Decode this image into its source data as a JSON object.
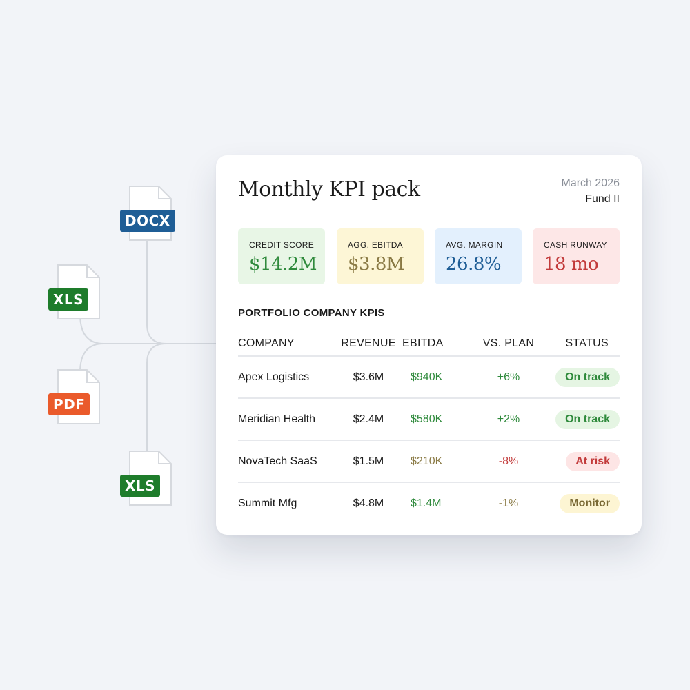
{
  "colors": {
    "connector": "#d4d8de",
    "file_outline": "#d6d9de",
    "green_text": "#2f8a3c",
    "olive_text": "#8a7a45",
    "red_text": "#c23a3a",
    "blue_text": "#1f5e96"
  },
  "files": [
    {
      "type": "DOCX",
      "icon": "docx-file-icon"
    },
    {
      "type": "XLS",
      "icon": "xls-file-icon"
    },
    {
      "type": "PDF",
      "icon": "pdf-file-icon"
    },
    {
      "type": "XLS",
      "icon": "xls-file-icon"
    }
  ],
  "card": {
    "title": "Monthly KPI pack",
    "date": "March 2026",
    "fund": "Fund II"
  },
  "kpis": [
    {
      "label": "CREDIT SCORE",
      "value": "$14.2M",
      "bg": "#e8f6e6",
      "color": "#2f8a3c"
    },
    {
      "label": "AGG. EBITDA",
      "value": "$3.8M",
      "bg": "#fdf6d6",
      "color": "#8a7a45"
    },
    {
      "label": "AVG. MARGIN",
      "value": "26.8%",
      "bg": "#e3f0fd",
      "color": "#1f5e96"
    },
    {
      "label": "CASH RUNWAY",
      "value": "18 mo",
      "bg": "#fde7e7",
      "color": "#c23a3a"
    }
  ],
  "table": {
    "title": "PORTFOLIO COMPANY KPIS",
    "columns": [
      "COMPANY",
      "REVENUE",
      "EBITDA",
      "VS. PLAN",
      "STATUS"
    ],
    "rows": [
      {
        "company": "Apex Logistics",
        "revenue": "$3.6M",
        "ebitda": "$940K",
        "ebitda_color": "#2f8a3c",
        "vs_plan": "+6%",
        "vs_plan_color": "#2f8a3c",
        "status": "On track",
        "status_bg": "#e5f5e3",
        "status_color": "#2f8a3c"
      },
      {
        "company": "Meridian Health",
        "revenue": "$2.4M",
        "ebitda": "$580K",
        "ebitda_color": "#2f8a3c",
        "vs_plan": "+2%",
        "vs_plan_color": "#2f8a3c",
        "status": "On track",
        "status_bg": "#e5f5e3",
        "status_color": "#2f8a3c"
      },
      {
        "company": "NovaTech SaaS",
        "revenue": "$1.5M",
        "ebitda": "$210K",
        "ebitda_color": "#8a7a45",
        "vs_plan": "-8%",
        "vs_plan_color": "#c23a3a",
        "status": "At risk",
        "status_bg": "#fde5e5",
        "status_color": "#c23a3a"
      },
      {
        "company": "Summit Mfg",
        "revenue": "$4.8M",
        "ebitda": "$1.4M",
        "ebitda_color": "#2f8a3c",
        "vs_plan": "-1%",
        "vs_plan_color": "#8a7a45",
        "status": "Monitor",
        "status_bg": "#fdf5d3",
        "status_color": "#7a6a35"
      }
    ]
  }
}
